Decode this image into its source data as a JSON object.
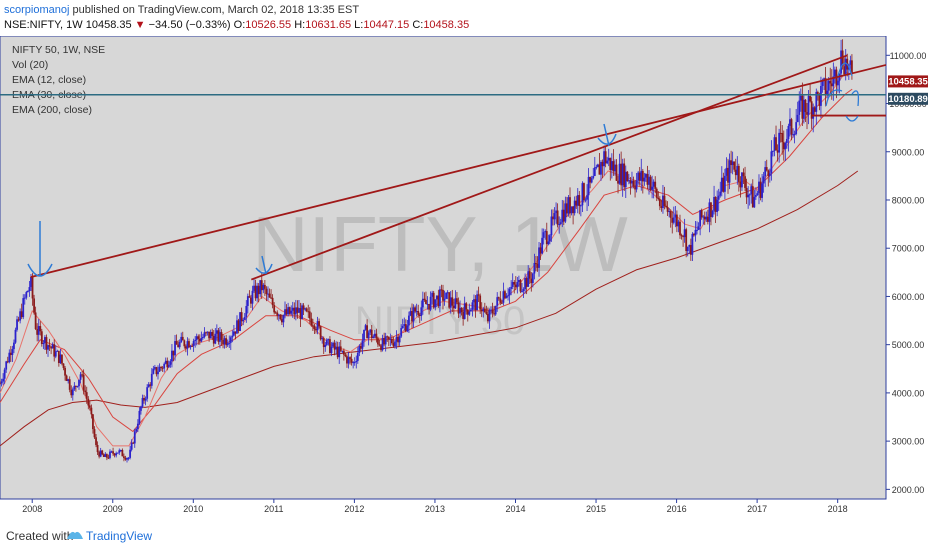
{
  "header": {
    "author": "scorpiomanoj",
    "published": "published on TradingView.com, March 02, 2018 13:35 EST"
  },
  "quote": {
    "symbol": "NSE:NIFTY, 1W",
    "last": "10458.35",
    "arrow": "▼",
    "change": "−34.50 (−0.33%)",
    "o_label": "O:",
    "o": "10526.55",
    "h_label": "H:",
    "h": "10631.65",
    "l_label": "L:",
    "l": "10447.15",
    "c_label": "C:",
    "c": "10458.35"
  },
  "legend": [
    "NIFTY 50, 1W, NSE",
    "Vol (20)",
    "EMA (12, close)",
    "EMA (30, close)",
    "EMA (200, close)"
  ],
  "watermark": {
    "main": "NIFTY, 1W",
    "sub": "NIFTY 50"
  },
  "footer": {
    "created": "Created with",
    "brand": "TradingView"
  },
  "colors": {
    "background": "#d7d7d7",
    "candle_up": "#2b22cc",
    "candle_down": "#8b1a1a",
    "ema12": "#e8736b",
    "ema30": "#d9453f",
    "ema200": "#a0201c",
    "trendline": "#a01818",
    "hline": "#2c6b82",
    "annotation": "#2e7bd6",
    "price_label": "#a01818"
  },
  "price_labels": {
    "last": "10458.35",
    "level": "10180.89"
  },
  "chart_data": {
    "type": "candlestick",
    "title": "NIFTY 50, 1W, NSE",
    "x_ticks": [
      "2008",
      "2009",
      "2010",
      "2011",
      "2012",
      "2013",
      "2014",
      "2015",
      "2016",
      "2017",
      "2018"
    ],
    "y_ticks": [
      "11000.00",
      "10000.00",
      "9000.00",
      "8000.00",
      "7000.00",
      "6000.00",
      "5000.00",
      "4000.00",
      "3000.00",
      "2000.00"
    ],
    "ylim": [
      1800,
      11400
    ],
    "xlim": [
      2007.6,
      2018.6
    ],
    "price_path": [
      [
        2007.6,
        4200
      ],
      [
        2007.75,
        5000
      ],
      [
        2007.9,
        5900
      ],
      [
        2007.98,
        6300
      ],
      [
        2008.05,
        5300
      ],
      [
        2008.2,
        5000
      ],
      [
        2008.35,
        4700
      ],
      [
        2008.5,
        4000
      ],
      [
        2008.6,
        4400
      ],
      [
        2008.72,
        3600
      ],
      [
        2008.8,
        2800
      ],
      [
        2008.9,
        2650
      ],
      [
        2009.05,
        2800
      ],
      [
        2009.2,
        2650
      ],
      [
        2009.35,
        3700
      ],
      [
        2009.5,
        4400
      ],
      [
        2009.65,
        4600
      ],
      [
        2009.8,
        5000
      ],
      [
        2010.0,
        5100
      ],
      [
        2010.2,
        5200
      ],
      [
        2010.4,
        5100
      ],
      [
        2010.55,
        5400
      ],
      [
        2010.72,
        6000
      ],
      [
        2010.85,
        6200
      ],
      [
        2010.95,
        5900
      ],
      [
        2011.1,
        5600
      ],
      [
        2011.3,
        5700
      ],
      [
        2011.5,
        5500
      ],
      [
        2011.65,
        5000
      ],
      [
        2011.85,
        4800
      ],
      [
        2011.98,
        4600
      ],
      [
        2012.15,
        5300
      ],
      [
        2012.35,
        5000
      ],
      [
        2012.5,
        5100
      ],
      [
        2012.75,
        5700
      ],
      [
        2012.95,
        5900
      ],
      [
        2013.1,
        6000
      ],
      [
        2013.35,
        5700
      ],
      [
        2013.55,
        5900
      ],
      [
        2013.65,
        5500
      ],
      [
        2013.85,
        6100
      ],
      [
        2014.0,
        6200
      ],
      [
        2014.2,
        6400
      ],
      [
        2014.35,
        7200
      ],
      [
        2014.55,
        7700
      ],
      [
        2014.75,
        8000
      ],
      [
        2014.95,
        8300
      ],
      [
        2015.1,
        8900
      ],
      [
        2015.25,
        8600
      ],
      [
        2015.5,
        8400
      ],
      [
        2015.65,
        8500
      ],
      [
        2015.8,
        7900
      ],
      [
        2015.95,
        7700
      ],
      [
        2016.1,
        7300
      ],
      [
        2016.15,
        6900
      ],
      [
        2016.3,
        7600
      ],
      [
        2016.5,
        8000
      ],
      [
        2016.7,
        8800
      ],
      [
        2016.85,
        8300
      ],
      [
        2016.95,
        8000
      ],
      [
        2017.05,
        8300
      ],
      [
        2017.2,
        9000
      ],
      [
        2017.4,
        9400
      ],
      [
        2017.55,
        9900
      ],
      [
        2017.7,
        10000
      ],
      [
        2017.85,
        10300
      ],
      [
        2017.95,
        10500
      ],
      [
        2018.05,
        11000
      ],
      [
        2018.12,
        10800
      ],
      [
        2018.18,
        10458
      ]
    ],
    "ema12": [
      [
        2007.6,
        4000
      ],
      [
        2007.8,
        4700
      ],
      [
        2008.0,
        5700
      ],
      [
        2008.2,
        5300
      ],
      [
        2008.4,
        4800
      ],
      [
        2008.6,
        4200
      ],
      [
        2008.8,
        3300
      ],
      [
        2009.0,
        2900
      ],
      [
        2009.2,
        2900
      ],
      [
        2009.4,
        3500
      ],
      [
        2009.6,
        4300
      ],
      [
        2009.8,
        4800
      ],
      [
        2010.0,
        5000
      ],
      [
        2010.3,
        5150
      ],
      [
        2010.6,
        5400
      ],
      [
        2010.85,
        6000
      ],
      [
        2011.1,
        5700
      ],
      [
        2011.4,
        5500
      ],
      [
        2011.7,
        5000
      ],
      [
        2011.95,
        4850
      ],
      [
        2012.2,
        5150
      ],
      [
        2012.5,
        5100
      ],
      [
        2012.85,
        5700
      ],
      [
        2013.1,
        5900
      ],
      [
        2013.5,
        5800
      ],
      [
        2013.7,
        5700
      ],
      [
        2014.0,
        6150
      ],
      [
        2014.3,
        6800
      ],
      [
        2014.6,
        7600
      ],
      [
        2014.95,
        8200
      ],
      [
        2015.15,
        8600
      ],
      [
        2015.5,
        8400
      ],
      [
        2015.8,
        8000
      ],
      [
        2016.1,
        7500
      ],
      [
        2016.3,
        7400
      ],
      [
        2016.6,
        8300
      ],
      [
        2016.85,
        8400
      ],
      [
        2017.0,
        8200
      ],
      [
        2017.3,
        8950
      ],
      [
        2017.6,
        9700
      ],
      [
        2017.9,
        10200
      ],
      [
        2018.1,
        10650
      ],
      [
        2018.18,
        10600
      ]
    ],
    "ema30": [
      [
        2007.6,
        3800
      ],
      [
        2007.9,
        4600
      ],
      [
        2008.1,
        5100
      ],
      [
        2008.4,
        4900
      ],
      [
        2008.7,
        4300
      ],
      [
        2009.0,
        3500
      ],
      [
        2009.25,
        3200
      ],
      [
        2009.5,
        3700
      ],
      [
        2009.8,
        4400
      ],
      [
        2010.1,
        4800
      ],
      [
        2010.5,
        5100
      ],
      [
        2010.9,
        5600
      ],
      [
        2011.3,
        5600
      ],
      [
        2011.7,
        5300
      ],
      [
        2012.0,
        5100
      ],
      [
        2012.4,
        5100
      ],
      [
        2012.8,
        5400
      ],
      [
        2013.2,
        5700
      ],
      [
        2013.7,
        5700
      ],
      [
        2014.0,
        5900
      ],
      [
        2014.4,
        6500
      ],
      [
        2014.8,
        7400
      ],
      [
        2015.1,
        8100
      ],
      [
        2015.5,
        8300
      ],
      [
        2015.9,
        8100
      ],
      [
        2016.2,
        7700
      ],
      [
        2016.6,
        8000
      ],
      [
        2017.0,
        8250
      ],
      [
        2017.4,
        8900
      ],
      [
        2017.8,
        9700
      ],
      [
        2018.1,
        10200
      ],
      [
        2018.18,
        10300
      ]
    ],
    "ema200": [
      [
        2007.6,
        2900
      ],
      [
        2007.9,
        3300
      ],
      [
        2008.2,
        3650
      ],
      [
        2008.5,
        3800
      ],
      [
        2008.8,
        3850
      ],
      [
        2009.1,
        3750
      ],
      [
        2009.4,
        3700
      ],
      [
        2009.8,
        3800
      ],
      [
        2010.2,
        4050
      ],
      [
        2010.6,
        4300
      ],
      [
        2011.0,
        4550
      ],
      [
        2011.5,
        4750
      ],
      [
        2012.0,
        4850
      ],
      [
        2012.5,
        4950
      ],
      [
        2013.0,
        5050
      ],
      [
        2013.5,
        5200
      ],
      [
        2014.0,
        5350
      ],
      [
        2014.5,
        5650
      ],
      [
        2015.0,
        6150
      ],
      [
        2015.5,
        6550
      ],
      [
        2016.0,
        6800
      ],
      [
        2016.5,
        7100
      ],
      [
        2017.0,
        7400
      ],
      [
        2017.5,
        7800
      ],
      [
        2018.0,
        8300
      ],
      [
        2018.25,
        8600
      ]
    ],
    "trendlines": [
      {
        "from": [
          2007.98,
          6400
        ],
        "to": [
          2018.6,
          10800
        ]
      },
      {
        "from": [
          2010.72,
          6350
        ],
        "to": [
          2018.12,
          11000
        ]
      },
      {
        "from": [
          2017.68,
          9750
        ],
        "to": [
          2018.6,
          9750
        ]
      }
    ],
    "horizontal_level": 10180.89,
    "last_price": 10458.35
  }
}
